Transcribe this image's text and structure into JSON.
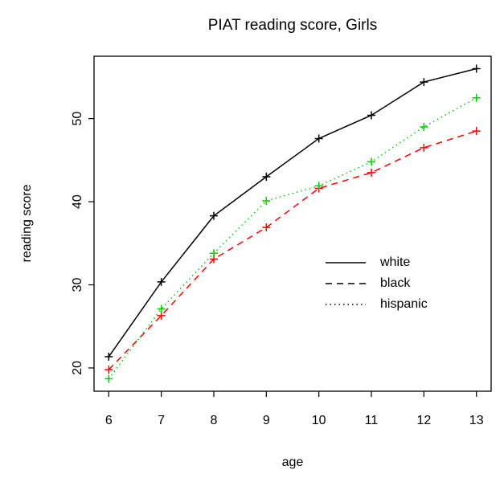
{
  "chart_data": {
    "type": "line",
    "title": "PIAT reading score, Girls",
    "x_label": "age",
    "y_label": "reading score",
    "x": [
      6,
      7,
      8,
      9,
      10,
      11,
      12,
      13
    ],
    "series": [
      {
        "name": "white",
        "color": "#000000",
        "line_style": "solid",
        "values": [
          21.35,
          30.35,
          38.3,
          43.0,
          47.6,
          50.4,
          54.4,
          56.0
        ]
      },
      {
        "name": "black",
        "color": "#ff0000",
        "line_style": "dashed",
        "values": [
          19.8,
          26.3,
          33.1,
          36.9,
          41.6,
          43.5,
          46.5,
          48.5
        ]
      },
      {
        "name": "hispanic",
        "color": "#00cd00",
        "line_style": "dotted",
        "values": [
          18.7,
          27.1,
          33.8,
          40.1,
          41.9,
          44.8,
          49.0,
          52.5
        ]
      }
    ],
    "xlim": [
      5.72,
      13.28
    ],
    "ylim": [
      17.2,
      57.5
    ],
    "xticks": [
      6,
      7,
      8,
      9,
      10,
      11,
      12,
      13
    ],
    "yticks": [
      20,
      30,
      40,
      50
    ],
    "marker": "plus",
    "legend": "right"
  }
}
